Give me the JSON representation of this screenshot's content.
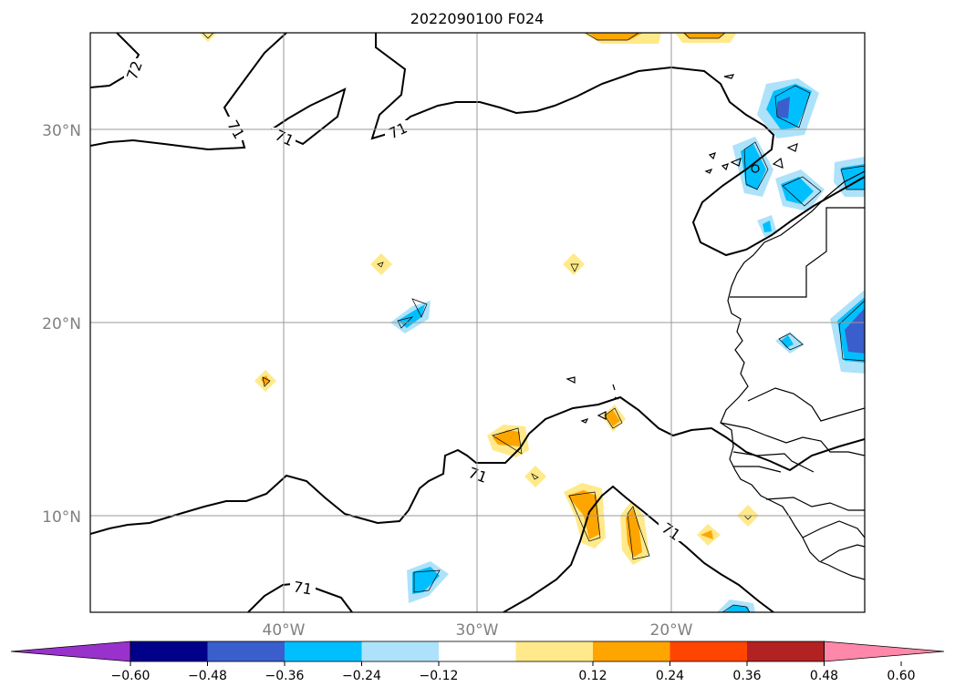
{
  "title": "2022090100 F024",
  "lat_ticks": [
    "30°N",
    "20°N",
    "10°N"
  ],
  "lon_ticks": [
    "40°W",
    "30°W",
    "20°W"
  ],
  "contour_labels": [
    "72",
    "71",
    "71",
    "71",
    "71",
    "71",
    "71"
  ],
  "colorbar": {
    "tick_labels": [
      "−0.60",
      "−0.48",
      "−0.36",
      "−0.24",
      "−0.12",
      "0.12",
      "0.24",
      "0.36",
      "0.48",
      "0.60"
    ],
    "colors": [
      "#9932CC",
      "#00008B",
      "#3A5FCD",
      "#00BFFF",
      "#ADE2FA",
      "#FFFFFF",
      "#FFE98A",
      "#FFA500",
      "#FF4500",
      "#B22222",
      "#FF88AA"
    ]
  }
}
